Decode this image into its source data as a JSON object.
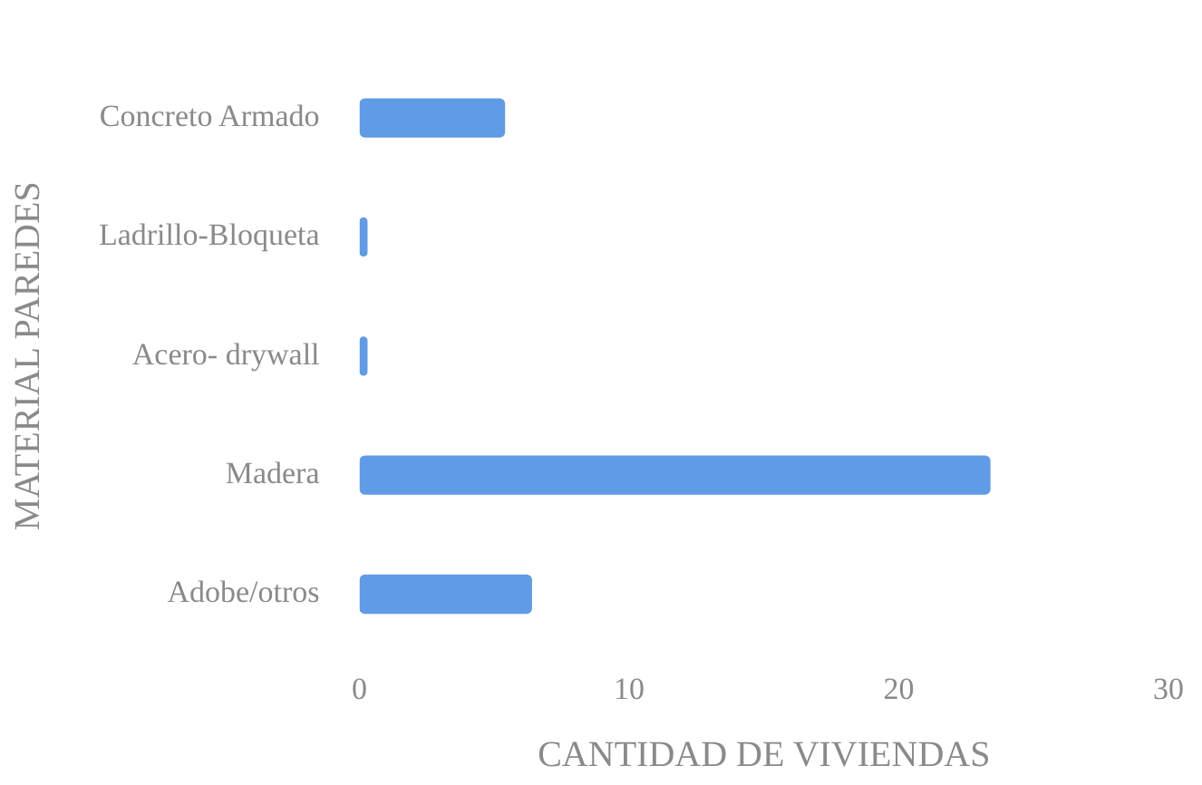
{
  "chart_data": {
    "type": "bar",
    "orientation": "horizontal",
    "xlabel": "CANTIDAD DE VIVIENDAS",
    "ylabel": "MATERIAL PAREDES",
    "categories": [
      "Concreto Armado",
      "Ladrillo-Bloqueta",
      "Acero- drywall",
      "Madera",
      "Adobe/otros"
    ],
    "values": [
      5.4,
      0.3,
      0.3,
      23.4,
      6.4
    ],
    "color": "#5f9be6",
    "xlim": [
      0,
      30
    ],
    "xticks": [
      0,
      10,
      20,
      30
    ],
    "grid": false
  }
}
